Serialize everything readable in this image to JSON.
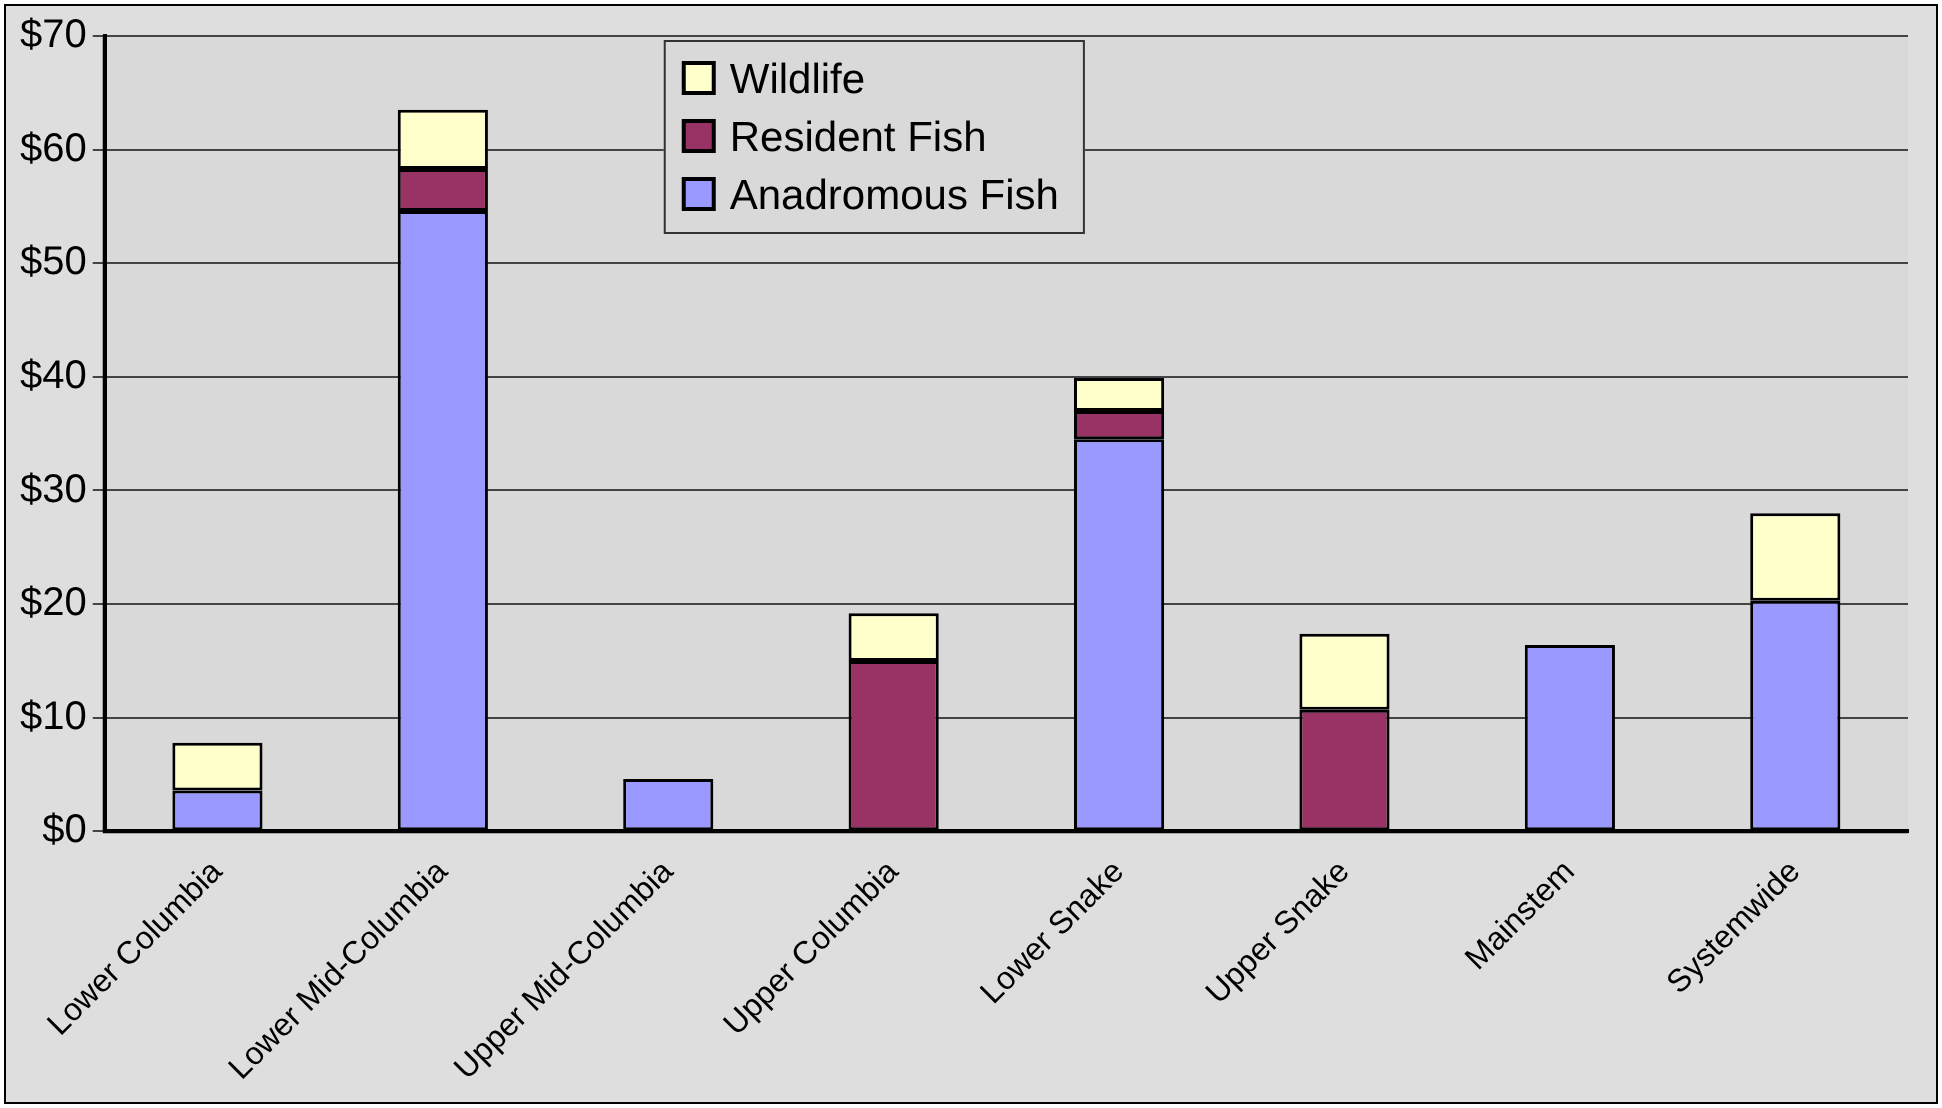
{
  "chart_data": {
    "type": "bar",
    "stacked": true,
    "legend": "top",
    "grid": "y",
    "categories": [
      "Lower Columbia",
      "Lower Mid-Columbia",
      "Upper Mid-Columbia",
      "Upper Columbia",
      "Lower Snake",
      "Upper Snake",
      "Mainstem",
      "Systemwide"
    ],
    "series": [
      {
        "name": "Anadromous Fish",
        "color": "#9999ff",
        "values": [
          3.6,
          54.6,
          4.6,
          null,
          34.5,
          null,
          16.4,
          20.3
        ]
      },
      {
        "name": "Resident Fish",
        "color": "#993366",
        "values": [
          null,
          3.7,
          null,
          15.0,
          2.5,
          10.7,
          null,
          null
        ]
      },
      {
        "name": "Wildlife",
        "color": "#ffffcc",
        "values": [
          4.2,
          5.2,
          null,
          4.2,
          2.9,
          6.7,
          null,
          7.7
        ]
      }
    ],
    "ylim": [
      0,
      70
    ],
    "yticks": [
      {
        "value": 0,
        "label": "$0"
      },
      {
        "value": 10,
        "label": "$10"
      },
      {
        "value": 20,
        "label": "$20"
      },
      {
        "value": 30,
        "label": "$30"
      },
      {
        "value": 40,
        "label": "$40"
      },
      {
        "value": 50,
        "label": "$50"
      },
      {
        "value": 60,
        "label": "$60"
      },
      {
        "value": 70,
        "label": "$70"
      }
    ]
  }
}
